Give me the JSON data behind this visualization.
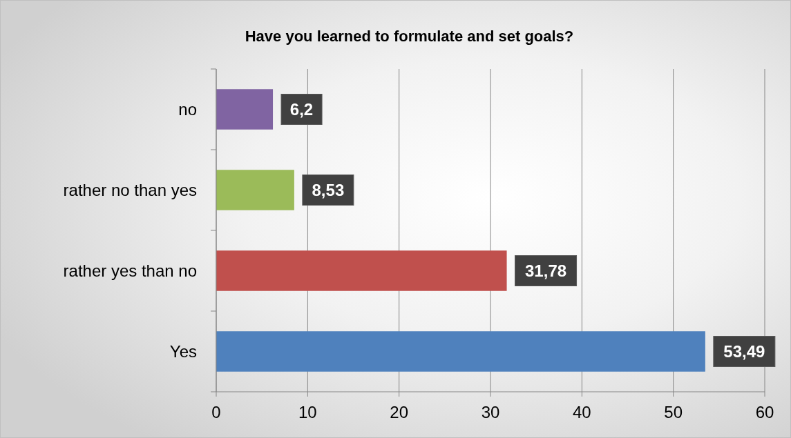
{
  "chart_data": {
    "type": "bar",
    "orientation": "horizontal",
    "title": "Have you learned to formulate and set goals?",
    "categories": [
      "no",
      "rather no than yes",
      "rather yes than no",
      "Yes"
    ],
    "values": [
      6.2,
      8.53,
      31.78,
      53.49
    ],
    "colors": [
      "#8064a2",
      "#9bbb59",
      "#c0504d",
      "#4f81bd"
    ],
    "value_labels": [
      "6,2",
      "8,53",
      "31,78",
      "53,49"
    ],
    "xlim": [
      0,
      60
    ],
    "xticks": [
      0,
      10,
      20,
      30,
      40,
      50,
      60
    ],
    "grid": "x"
  }
}
